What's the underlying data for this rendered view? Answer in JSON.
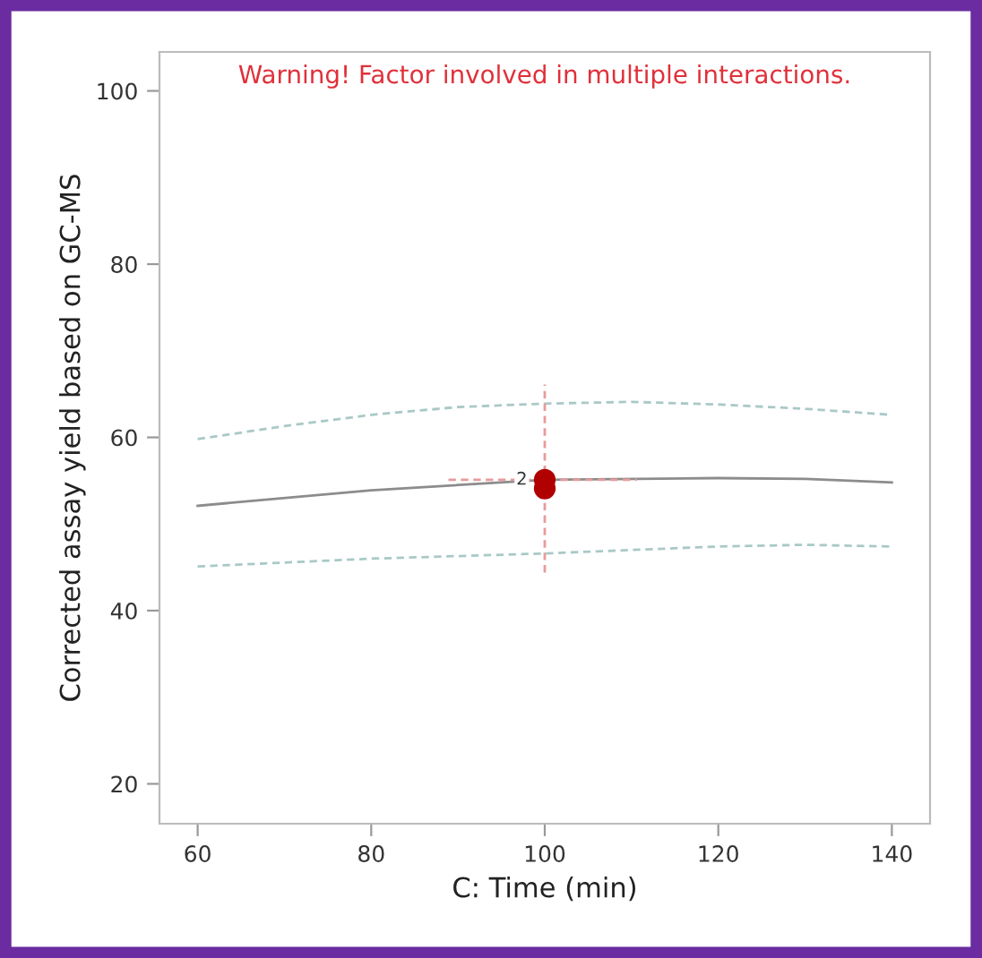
{
  "chart_data": {
    "type": "line",
    "title": "Warning! Factor involved in multiple interactions.",
    "xlabel": "C: Time (min)",
    "ylabel": "Corrected assay yield based on GC-MS",
    "xlim": [
      55.6,
      144.4
    ],
    "xticks": [
      60,
      80,
      100,
      120,
      140
    ],
    "ylim": [
      15.4,
      104.5
    ],
    "yticks": [
      20,
      40,
      60,
      80,
      100
    ],
    "grid": false,
    "legend": false,
    "series": [
      {
        "color": "#a9c9c6",
        "line_style": "dashed",
        "x": [
          60,
          70,
          80,
          90,
          100,
          110,
          120,
          130,
          140
        ],
        "values": [
          59.8,
          61.3,
          62.6,
          63.5,
          63.9,
          64.1,
          63.8,
          63.3,
          62.6
        ]
      },
      {
        "color": "#8c8c8c",
        "line_style": "solid",
        "x": [
          60,
          80,
          100,
          120,
          130,
          140
        ],
        "values": [
          52.1,
          53.9,
          55.1,
          55.3,
          55.2,
          54.8
        ]
      },
      {
        "color": "#a9c9c6",
        "line_style": "dashed",
        "x": [
          60,
          80,
          100,
          120,
          130,
          140
        ],
        "values": [
          45.1,
          46.0,
          46.6,
          47.4,
          47.6,
          47.4
        ]
      },
      {
        "color": "#e89a9a",
        "line_style": "dashed",
        "x": [
          100,
          100
        ],
        "values": [
          44.4,
          66.1
        ]
      },
      {
        "color": "#e89a9a",
        "line_style": "dashed",
        "x": [
          88.9,
          110.6
        ],
        "values": [
          55.1,
          55.1
        ]
      },
      {
        "type": "scatter",
        "color": "#b00000",
        "marker": "circle",
        "x": [
          100,
          100
        ],
        "values": [
          55.1,
          54.1
        ]
      }
    ],
    "annotations": [
      {
        "text": "2",
        "x": 100,
        "y": 55.1
      }
    ]
  }
}
